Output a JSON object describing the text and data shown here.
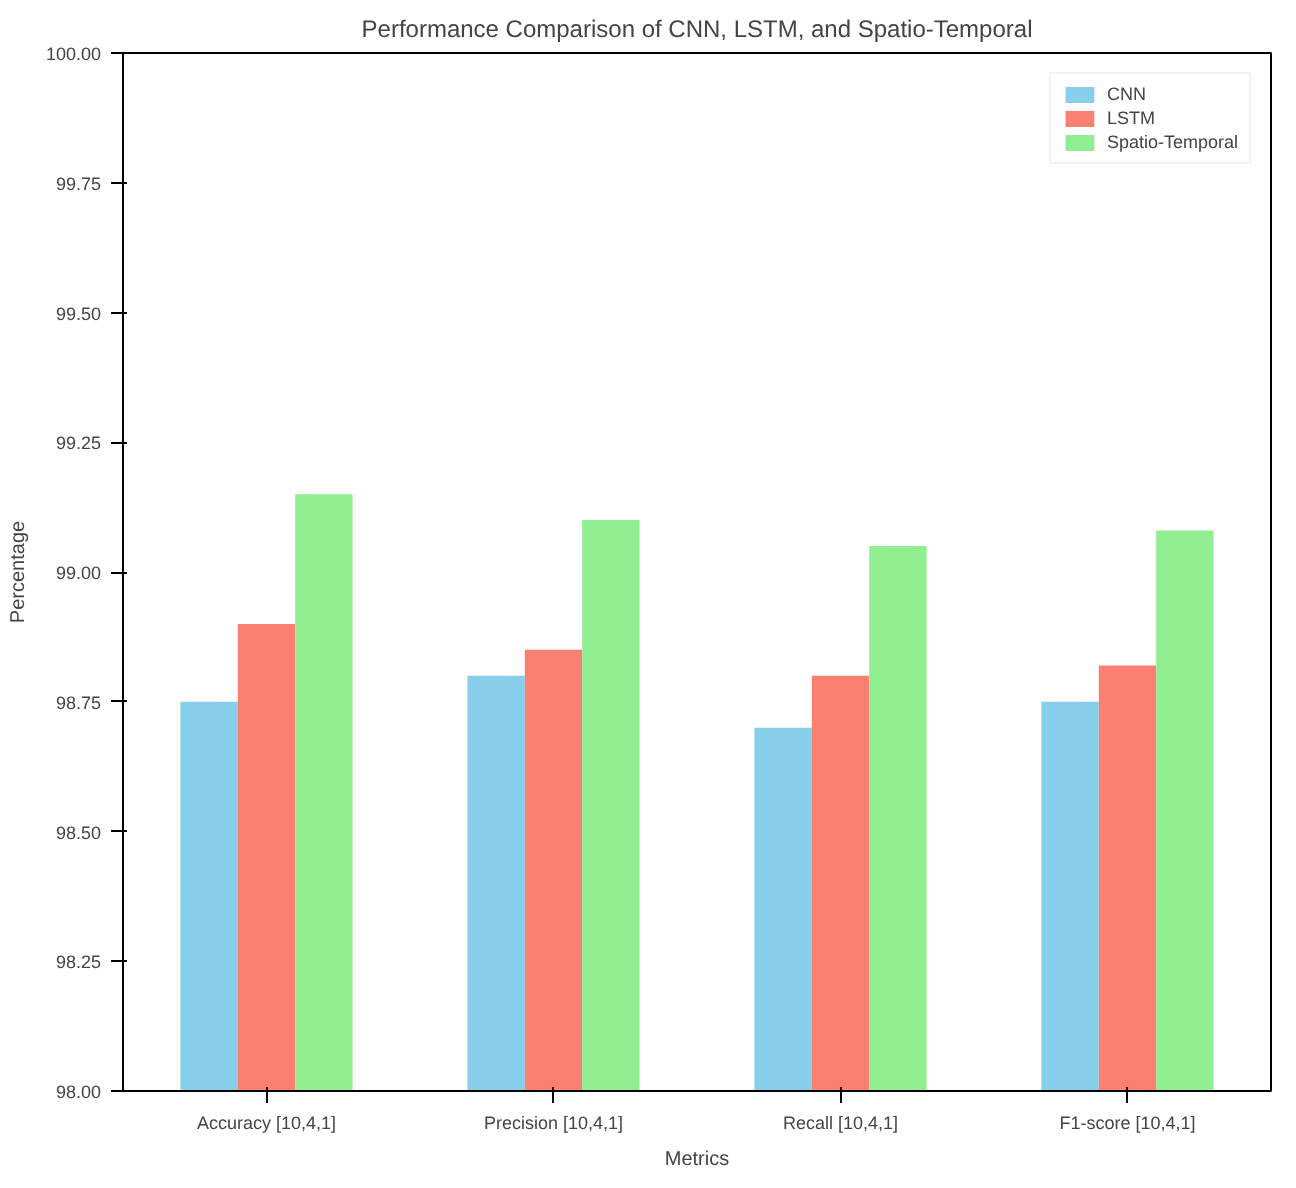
{
  "chart_data": {
    "type": "bar",
    "title": "Performance Comparison of CNN, LSTM, and Spatio-Temporal",
    "xlabel": "Metrics",
    "ylabel": "Percentage",
    "categories": [
      "Accuracy [10,4,1]",
      "Precision [10,4,1]",
      "Recall [10,4,1]",
      "F1-score [10,4,1]"
    ],
    "series": [
      {
        "name": "CNN",
        "color": "#87ceeb",
        "values": [
          98.75,
          98.8,
          98.7,
          98.75
        ]
      },
      {
        "name": "LSTM",
        "color": "#fa8072",
        "values": [
          98.9,
          98.85,
          98.8,
          98.82
        ]
      },
      {
        "name": "Spatio-Temporal",
        "color": "#90ee90",
        "values": [
          99.15,
          99.1,
          99.05,
          99.08
        ]
      }
    ],
    "ylim": [
      98,
      100
    ],
    "yticks": [
      {
        "value": 98,
        "label": "98.00"
      },
      {
        "value": 98.25,
        "label": "98.25"
      },
      {
        "value": 98.5,
        "label": "98.50"
      },
      {
        "value": 98.75,
        "label": "98.75"
      },
      {
        "value": 99,
        "label": "99.00"
      },
      {
        "value": 99.25,
        "label": "99.25"
      },
      {
        "value": 99.5,
        "label": "99.50"
      },
      {
        "value": 99.75,
        "label": "99.75"
      },
      {
        "value": 100,
        "label": "100.00"
      }
    ],
    "grid": false,
    "legend": "top right"
  }
}
